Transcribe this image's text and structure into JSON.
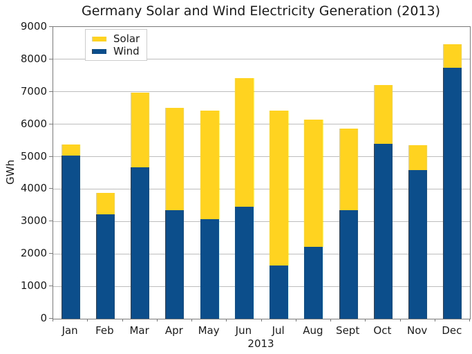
{
  "title": "Germany Solar and Wind Electricity Generation (2013)",
  "chart_data": {
    "type": "bar",
    "stacked": true,
    "title": "Germany Solar and Wind Electricity Generation (2013)",
    "xlabel": "2013",
    "ylabel": "GWh",
    "categories": [
      "Jan",
      "Feb",
      "Mar",
      "Apr",
      "May",
      "Jun",
      "Jul",
      "Aug",
      "Sept",
      "Oct",
      "Nov",
      "Dec"
    ],
    "series": [
      {
        "name": "Solar",
        "color": "#FFD320",
        "values": [
          350,
          660,
          2300,
          3160,
          3350,
          3970,
          4770,
          3940,
          2520,
          1820,
          770,
          730
        ]
      },
      {
        "name": "Wind",
        "color": "#0C4E8C",
        "values": [
          5030,
          3220,
          4670,
          3340,
          3070,
          3460,
          1650,
          2210,
          3350,
          5390,
          4580,
          7740
        ]
      }
    ],
    "ylim": [
      0,
      9000
    ],
    "yticks": [
      0,
      1000,
      2000,
      3000,
      4000,
      5000,
      6000,
      7000,
      8000,
      9000
    ],
    "grid": "horizontal",
    "legend_position": "top-left",
    "colors": {
      "grid": "#bdbdbd",
      "frame": "#787878",
      "background": "#ffffff"
    }
  }
}
